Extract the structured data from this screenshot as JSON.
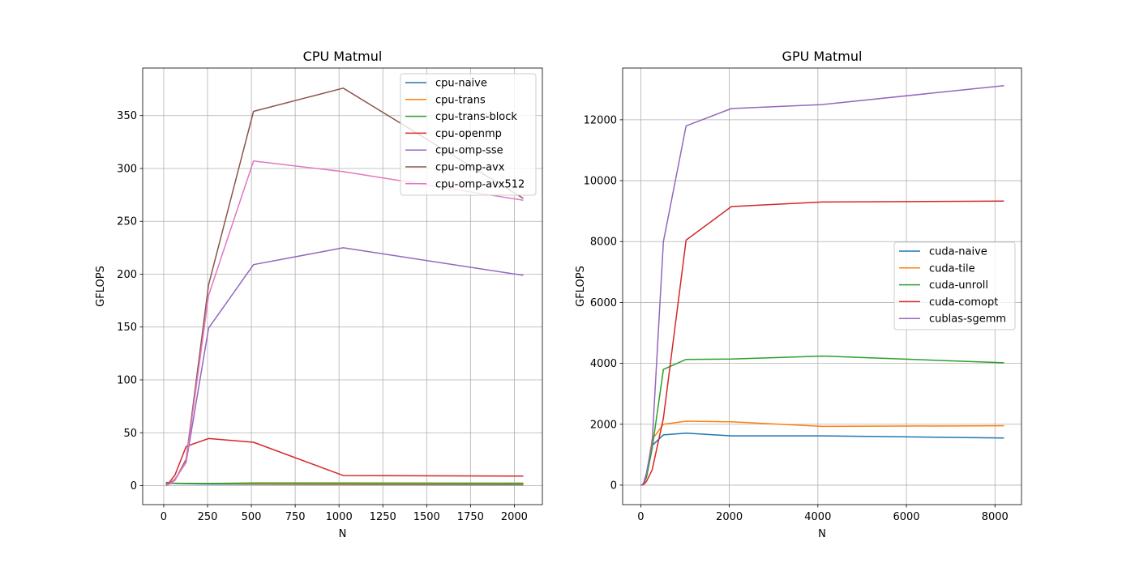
{
  "colors": {
    "C0": "#1f77b4",
    "C1": "#ff7f0e",
    "C2": "#2ca02c",
    "C3": "#d62728",
    "C4": "#9467bd",
    "C5": "#8c564b",
    "C6": "#e377c2"
  },
  "chart_data": [
    {
      "type": "line",
      "title": "CPU Matmul",
      "xlabel": "N",
      "ylabel": "GFLOPS",
      "xlim": [
        -120,
        2160
      ],
      "ylim": [
        -18,
        395
      ],
      "xticks": [
        0,
        250,
        500,
        750,
        1000,
        1250,
        1500,
        1750,
        2000
      ],
      "yticks": [
        0,
        50,
        100,
        150,
        200,
        250,
        300,
        350
      ],
      "grid": true,
      "legend_position": "top-right",
      "x": [
        16,
        32,
        64,
        128,
        256,
        512,
        1024,
        2048
      ],
      "series": [
        {
          "name": "cpu-naive",
          "color": "C0",
          "values": [
            3.0,
            2.5,
            2.0,
            1.8,
            1.5,
            1.2,
            0.9,
            0.8
          ]
        },
        {
          "name": "cpu-trans",
          "color": "C1",
          "values": [
            2.0,
            2.0,
            2.2,
            2.0,
            2.0,
            1.8,
            1.5,
            1.5
          ]
        },
        {
          "name": "cpu-trans-block",
          "color": "C2",
          "values": [
            1.5,
            2.0,
            2.2,
            2.0,
            2.0,
            2.5,
            2.5,
            2.3
          ]
        },
        {
          "name": "cpu-openmp",
          "color": "C3",
          "values": [
            0.5,
            3.0,
            10,
            37,
            44.5,
            41,
            9.5,
            9.0
          ]
        },
        {
          "name": "cpu-omp-sse",
          "color": "C4",
          "values": [
            0.3,
            2.0,
            6,
            22,
            149,
            209,
            225,
            199
          ]
        },
        {
          "name": "cpu-omp-avx",
          "color": "C5",
          "values": [
            0.2,
            1.5,
            5,
            25,
            190,
            354,
            376,
            272
          ]
        },
        {
          "name": "cpu-omp-avx512",
          "color": "C6",
          "values": [
            0.2,
            1.5,
            5,
            23,
            180,
            307,
            297,
            270
          ]
        }
      ]
    },
    {
      "type": "line",
      "title": "GPU Matmul",
      "xlabel": "N",
      "ylabel": "GFLOPS",
      "xlim": [
        -410,
        8600
      ],
      "ylim": [
        -640,
        13700
      ],
      "xticks": [
        0,
        2000,
        4000,
        6000,
        8000
      ],
      "yticks": [
        0,
        2000,
        4000,
        6000,
        8000,
        10000,
        12000
      ],
      "grid": true,
      "legend_position": "center-right",
      "x": [
        16,
        32,
        64,
        128,
        256,
        512,
        1024,
        2048,
        4096,
        8192
      ],
      "series": [
        {
          "name": "cuda-naive",
          "color": "C0",
          "values": [
            2,
            10,
            60,
            350,
            1300,
            1650,
            1710,
            1620,
            1620,
            1550
          ]
        },
        {
          "name": "cuda-tile",
          "color": "C1",
          "values": [
            1,
            8,
            50,
            300,
            1500,
            2000,
            2100,
            2080,
            1930,
            1950
          ]
        },
        {
          "name": "cuda-unroll",
          "color": "C2",
          "values": [
            1,
            8,
            50,
            250,
            1200,
            3800,
            4130,
            4140,
            4240,
            4020
          ]
        },
        {
          "name": "cuda-comopt",
          "color": "C3",
          "values": [
            1,
            5,
            20,
            120,
            500,
            2200,
            8050,
            9150,
            9300,
            9330
          ]
        },
        {
          "name": "cublas-sgemm",
          "color": "C4",
          "values": [
            1,
            10,
            80,
            400,
            1400,
            8000,
            11800,
            12370,
            12500,
            13120
          ]
        }
      ]
    }
  ]
}
